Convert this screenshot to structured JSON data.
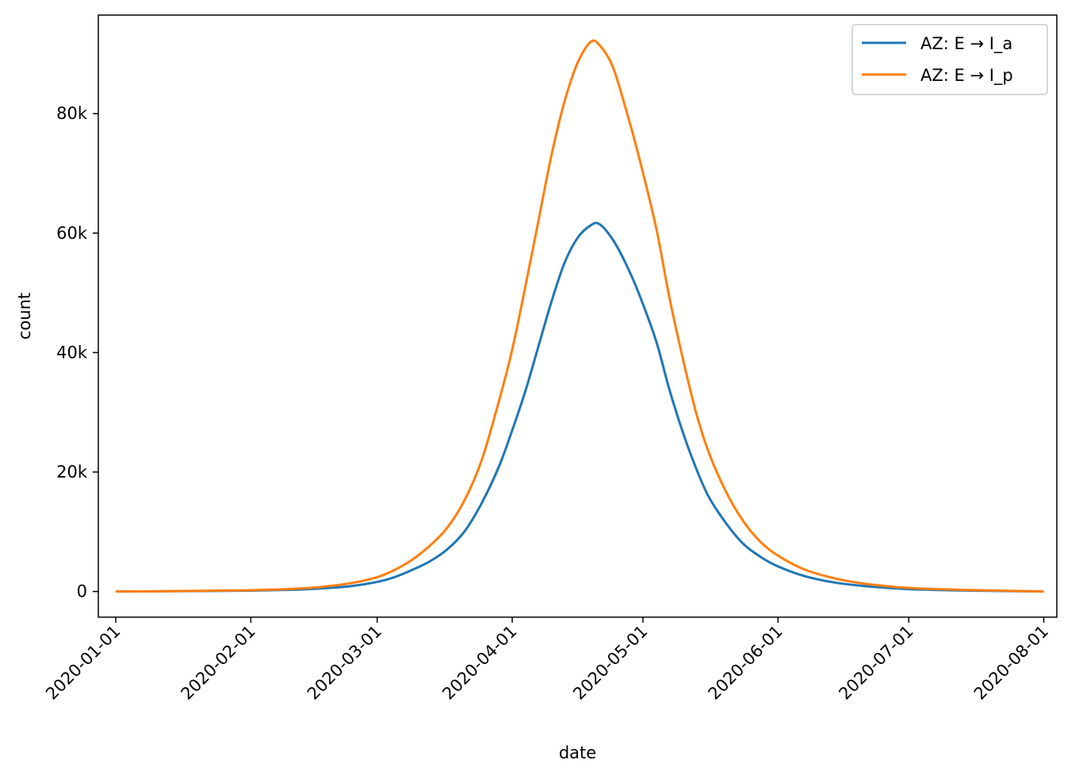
{
  "chart_data": {
    "type": "line",
    "title": "",
    "xlabel": "date",
    "ylabel": "count",
    "x_type": "date",
    "xlim": [
      "2019-12-28",
      "2020-08-04"
    ],
    "ylim": [
      -4300,
      96500
    ],
    "x_ticks": [
      "2020-01-01",
      "2020-02-01",
      "2020-03-01",
      "2020-04-01",
      "2020-05-01",
      "2020-06-01",
      "2020-07-01",
      "2020-08-01"
    ],
    "y_ticks": [
      0,
      20000,
      40000,
      60000,
      80000
    ],
    "y_tick_labels": [
      "0",
      "20k",
      "40k",
      "60k",
      "80k"
    ],
    "grid": false,
    "legend_position": "upper right",
    "series": [
      {
        "name": "AZ: E → I_a",
        "color": "#1f77b4",
        "points": [
          [
            "2020-01-01",
            0
          ],
          [
            "2020-01-11",
            30
          ],
          [
            "2020-01-21",
            80
          ],
          [
            "2020-02-01",
            150
          ],
          [
            "2020-02-11",
            300
          ],
          [
            "2020-02-17",
            500
          ],
          [
            "2020-02-24",
            900
          ],
          [
            "2020-03-01",
            1600
          ],
          [
            "2020-03-05",
            2400
          ],
          [
            "2020-03-09",
            3600
          ],
          [
            "2020-03-13",
            5000
          ],
          [
            "2020-03-17",
            7000
          ],
          [
            "2020-03-21",
            10000
          ],
          [
            "2020-03-25",
            14800
          ],
          [
            "2020-03-29",
            21000
          ],
          [
            "2020-04-01",
            27000
          ],
          [
            "2020-04-04",
            33500
          ],
          [
            "2020-04-07",
            41000
          ],
          [
            "2020-04-10",
            48500
          ],
          [
            "2020-04-13",
            55000
          ],
          [
            "2020-04-16",
            59200
          ],
          [
            "2020-04-19",
            61300
          ],
          [
            "2020-04-21",
            61500
          ],
          [
            "2020-04-24",
            59000
          ],
          [
            "2020-04-27",
            55000
          ],
          [
            "2020-04-30",
            50000
          ],
          [
            "2020-05-04",
            42000
          ],
          [
            "2020-05-07",
            34000
          ],
          [
            "2020-05-10",
            27000
          ],
          [
            "2020-05-13",
            21000
          ],
          [
            "2020-05-16",
            16000
          ],
          [
            "2020-05-20",
            11500
          ],
          [
            "2020-05-24",
            8000
          ],
          [
            "2020-05-28",
            5800
          ],
          [
            "2020-06-01",
            4200
          ],
          [
            "2020-06-07",
            2600
          ],
          [
            "2020-06-14",
            1500
          ],
          [
            "2020-06-21",
            900
          ],
          [
            "2020-07-01",
            400
          ],
          [
            "2020-07-15",
            150
          ],
          [
            "2020-08-01",
            0
          ]
        ]
      },
      {
        "name": "AZ: E → I_p",
        "color": "#ff7f0e",
        "points": [
          [
            "2020-01-01",
            0
          ],
          [
            "2020-01-11",
            40
          ],
          [
            "2020-01-21",
            120
          ],
          [
            "2020-02-01",
            220
          ],
          [
            "2020-02-11",
            450
          ],
          [
            "2020-02-17",
            750
          ],
          [
            "2020-02-24",
            1400
          ],
          [
            "2020-03-01",
            2400
          ],
          [
            "2020-03-05",
            3600
          ],
          [
            "2020-03-09",
            5300
          ],
          [
            "2020-03-13",
            7600
          ],
          [
            "2020-03-17",
            10600
          ],
          [
            "2020-03-21",
            15200
          ],
          [
            "2020-03-25",
            22000
          ],
          [
            "2020-03-29",
            32000
          ],
          [
            "2020-04-01",
            40500
          ],
          [
            "2020-04-04",
            51000
          ],
          [
            "2020-04-07",
            62000
          ],
          [
            "2020-04-10",
            73000
          ],
          [
            "2020-04-13",
            82000
          ],
          [
            "2020-04-16",
            88500
          ],
          [
            "2020-04-19",
            92000
          ],
          [
            "2020-04-21",
            91500
          ],
          [
            "2020-04-24",
            88000
          ],
          [
            "2020-04-27",
            81000
          ],
          [
            "2020-04-30",
            73000
          ],
          [
            "2020-05-04",
            61000
          ],
          [
            "2020-05-07",
            49500
          ],
          [
            "2020-05-10",
            39500
          ],
          [
            "2020-05-13",
            30500
          ],
          [
            "2020-05-16",
            23500
          ],
          [
            "2020-05-20",
            16800
          ],
          [
            "2020-05-24",
            11800
          ],
          [
            "2020-05-28",
            8300
          ],
          [
            "2020-06-01",
            6000
          ],
          [
            "2020-06-07",
            3700
          ],
          [
            "2020-06-14",
            2200
          ],
          [
            "2020-06-21",
            1300
          ],
          [
            "2020-07-01",
            600
          ],
          [
            "2020-07-15",
            250
          ],
          [
            "2020-08-01",
            0
          ]
        ]
      }
    ]
  }
}
